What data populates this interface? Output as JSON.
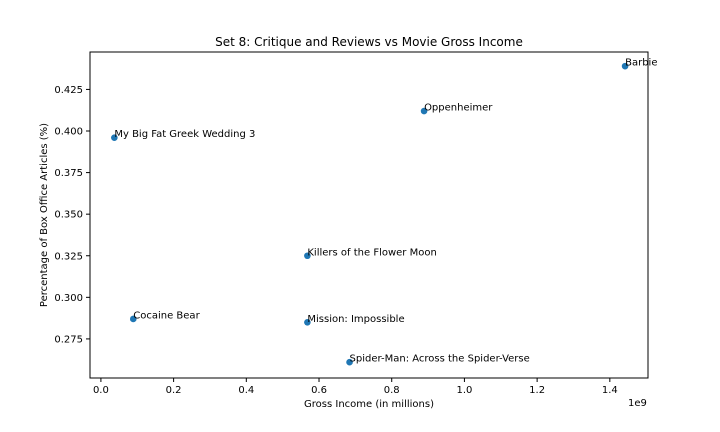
{
  "chart_data": {
    "type": "scatter",
    "title": "Set 8: Critique and Reviews vs Movie Gross Income",
    "xlabel": "Gross Income (in millions)",
    "ylabel": "Percentage of Box Office Articles (%)",
    "x_offset_text": "1e9",
    "xlim": [
      -0.03,
      1.505
    ],
    "ylim": [
      0.2515,
      0.4475
    ],
    "x_ticks": [
      0.0,
      0.2,
      0.4,
      0.6,
      0.8,
      1.0,
      1.2,
      1.4
    ],
    "x_tick_labels": [
      "0.0",
      "0.2",
      "0.4",
      "0.6",
      "0.8",
      "1.0",
      "1.2",
      "1.4"
    ],
    "y_ticks": [
      0.275,
      0.3,
      0.325,
      0.35,
      0.375,
      0.4,
      0.425
    ],
    "y_tick_labels": [
      "0.275",
      "0.300",
      "0.325",
      "0.350",
      "0.375",
      "0.400",
      "0.425"
    ],
    "grid": false,
    "marker_color": "#1f77b4",
    "points": [
      {
        "label": "Barbie",
        "x": 1.442,
        "y": 0.439
      },
      {
        "label": "Oppenheimer",
        "x": 0.889,
        "y": 0.412
      },
      {
        "label": "My Big Fat Greek Wedding 3",
        "x": 0.037,
        "y": 0.396
      },
      {
        "label": "Killers of the Flower Moon",
        "x": 0.568,
        "y": 0.325
      },
      {
        "label": "Cocaine Bear",
        "x": 0.089,
        "y": 0.287
      },
      {
        "label": "Mission: Impossible",
        "x": 0.568,
        "y": 0.285
      },
      {
        "label": "Spider-Man: Across the Spider-Verse",
        "x": 0.684,
        "y": 0.261
      }
    ]
  }
}
